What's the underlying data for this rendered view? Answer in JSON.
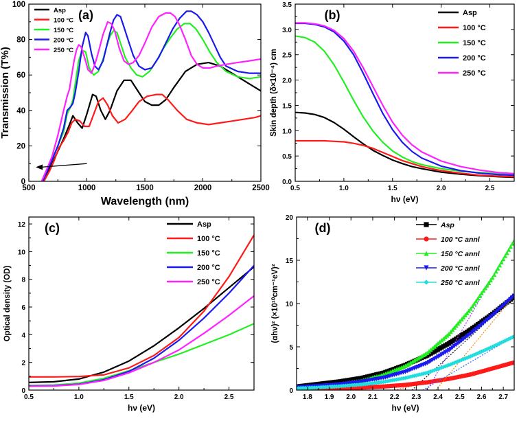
{
  "chart_data": [
    {
      "type": "line",
      "panel_label": "(a)",
      "xlabel": "Wavelength (nm)",
      "ylabel": "Transmission (T%)",
      "xlim": [
        500,
        2500
      ],
      "ylim": [
        0,
        100
      ],
      "xticks": [
        "500",
        "1000",
        "1500",
        "2000",
        "2500"
      ],
      "yticks": [
        "0",
        "20",
        "40",
        "60",
        "80",
        "100"
      ],
      "legend_position": "top-left",
      "series": [
        {
          "name": "Asp",
          "color": "#000000",
          "x": [
            610,
            650,
            700,
            750,
            800,
            850,
            880,
            920,
            960,
            1000,
            1050,
            1080,
            1120,
            1160,
            1200,
            1260,
            1320,
            1380,
            1450,
            1500,
            1560,
            1620,
            1680,
            1750,
            1850,
            1950,
            2050,
            2150,
            2250,
            2350,
            2450,
            2500
          ],
          "y": [
            0,
            4,
            10,
            17,
            24,
            32,
            37,
            33,
            30,
            38,
            49,
            48,
            40,
            35,
            40,
            51,
            57,
            57,
            50,
            45,
            43,
            43,
            46,
            53,
            62,
            66,
            67,
            65,
            61,
            57,
            53,
            51
          ]
        },
        {
          "name": "100 °C",
          "color": "#ff1a1a",
          "x": [
            630,
            680,
            720,
            760,
            800,
            840,
            870,
            900,
            940,
            980,
            1020,
            1060,
            1100,
            1140,
            1180,
            1220,
            1270,
            1330,
            1380,
            1450,
            1520,
            1600,
            1650,
            1700,
            1780,
            1860,
            1950,
            2050,
            2150,
            2250,
            2350,
            2450,
            2500
          ],
          "y": [
            0,
            6,
            12,
            19,
            23,
            28,
            33,
            35,
            34,
            31,
            31,
            38,
            45,
            47,
            43,
            37,
            33,
            35,
            39,
            45,
            48,
            49,
            49,
            46,
            40,
            35,
            33,
            32,
            33,
            34,
            35,
            36,
            37
          ]
        },
        {
          "name": "150 °C",
          "color": "#22ee22",
          "x": [
            610,
            650,
            700,
            750,
            800,
            830,
            860,
            880,
            900,
            930,
            960,
            990,
            1020,
            1060,
            1100,
            1140,
            1170,
            1200,
            1230,
            1260,
            1290,
            1330,
            1380,
            1430,
            1480,
            1540,
            1600,
            1660,
            1720,
            1780,
            1840,
            1890,
            1940,
            2000,
            2060,
            2120,
            2200,
            2300,
            2400,
            2500
          ],
          "y": [
            0,
            5,
            12,
            20,
            28,
            38,
            42,
            46,
            55,
            68,
            74,
            73,
            64,
            60,
            62,
            69,
            76,
            82,
            85,
            84,
            78,
            70,
            64,
            60,
            59,
            62,
            68,
            75,
            81,
            86,
            89,
            89,
            86,
            80,
            73,
            67,
            62,
            59,
            58,
            59
          ]
        },
        {
          "name": "200 °C",
          "color": "#1a1aee",
          "x": [
            620,
            660,
            700,
            750,
            800,
            830,
            860,
            880,
            900,
            930,
            960,
            990,
            1010,
            1040,
            1070,
            1100,
            1140,
            1170,
            1200,
            1230,
            1260,
            1290,
            1320,
            1360,
            1400,
            1450,
            1500,
            1560,
            1620,
            1680,
            1740,
            1800,
            1860,
            1900,
            1950,
            2000,
            2050,
            2100,
            2150,
            2200,
            2300,
            2400,
            2500
          ],
          "y": [
            0,
            6,
            12,
            20,
            30,
            40,
            42,
            44,
            50,
            62,
            76,
            84,
            82,
            72,
            65,
            63,
            68,
            76,
            84,
            91,
            94,
            93,
            87,
            79,
            71,
            65,
            63,
            64,
            70,
            78,
            86,
            92,
            96,
            96,
            94,
            90,
            84,
            77,
            70,
            65,
            62,
            61,
            61
          ]
        },
        {
          "name": "250 °C",
          "color": "#ff22ff",
          "x": [
            610,
            650,
            700,
            750,
            800,
            830,
            850,
            870,
            890,
            910,
            930,
            950,
            980,
            1010,
            1040,
            1070,
            1100,
            1140,
            1180,
            1210,
            1240,
            1280,
            1320,
            1360,
            1400,
            1450,
            1500,
            1560,
            1620,
            1680,
            1720,
            1760,
            1800,
            1850,
            1900,
            1950,
            2000,
            2060,
            2120,
            2200,
            2300,
            2400,
            2500
          ],
          "y": [
            0,
            6,
            14,
            26,
            40,
            48,
            52,
            60,
            68,
            74,
            77,
            76,
            70,
            63,
            61,
            66,
            73,
            83,
            90,
            89,
            85,
            75,
            68,
            66,
            67,
            71,
            78,
            87,
            93,
            95,
            95,
            93,
            88,
            80,
            71,
            66,
            64,
            64,
            65,
            66,
            67,
            68,
            69
          ]
        }
      ],
      "arrow": {
        "from": [
          1000,
          10
        ],
        "to": [
          560,
          8
        ]
      }
    },
    {
      "type": "line",
      "panel_label": "(b)",
      "xlabel": "hν (eV)",
      "ylabel": "Skin depth (δ×10⁻⁴) cm",
      "xlim": [
        0.5,
        2.75
      ],
      "ylim": [
        0,
        3.5
      ],
      "xticks": [
        "0.5",
        "1.0",
        "1.5",
        "2.0",
        "2.5"
      ],
      "yticks": [
        "0.0",
        "0.5",
        "1.0",
        "1.5",
        "2.0",
        "2.5",
        "3.0",
        "3.5"
      ],
      "legend_position": "top-right",
      "series": [
        {
          "name": "Asp",
          "color": "#000000",
          "x": [
            0.5,
            0.6,
            0.7,
            0.8,
            0.9,
            1.0,
            1.1,
            1.2,
            1.3,
            1.4,
            1.5,
            1.6,
            1.7,
            1.8,
            2.0,
            2.2,
            2.4,
            2.6,
            2.75
          ],
          "y": [
            1.36,
            1.35,
            1.32,
            1.26,
            1.16,
            1.03,
            0.88,
            0.74,
            0.61,
            0.51,
            0.42,
            0.35,
            0.29,
            0.25,
            0.18,
            0.14,
            0.11,
            0.09,
            0.08
          ]
        },
        {
          "name": "100 °C",
          "color": "#ff1a1a",
          "x": [
            0.5,
            0.6,
            0.7,
            0.8,
            0.9,
            1.0,
            1.1,
            1.2,
            1.3,
            1.4,
            1.5,
            1.6,
            1.7,
            1.8,
            2.0,
            2.2,
            2.4,
            2.6,
            2.75
          ],
          "y": [
            0.8,
            0.8,
            0.8,
            0.8,
            0.79,
            0.78,
            0.75,
            0.71,
            0.65,
            0.57,
            0.49,
            0.41,
            0.35,
            0.29,
            0.21,
            0.16,
            0.12,
            0.1,
            0.09
          ]
        },
        {
          "name": "150 °C",
          "color": "#22ee22",
          "x": [
            0.5,
            0.6,
            0.7,
            0.8,
            0.9,
            1.0,
            1.1,
            1.2,
            1.3,
            1.4,
            1.5,
            1.6,
            1.7,
            1.8,
            2.0,
            2.2,
            2.4,
            2.6,
            2.75
          ],
          "y": [
            2.87,
            2.84,
            2.75,
            2.57,
            2.3,
            1.96,
            1.6,
            1.27,
            0.99,
            0.77,
            0.6,
            0.48,
            0.39,
            0.33,
            0.25,
            0.2,
            0.17,
            0.15,
            0.14
          ]
        },
        {
          "name": "200 °C",
          "color": "#1a1aee",
          "x": [
            0.5,
            0.6,
            0.7,
            0.8,
            0.9,
            1.0,
            1.1,
            1.2,
            1.3,
            1.4,
            1.5,
            1.6,
            1.7,
            1.8,
            2.0,
            2.2,
            2.4,
            2.6,
            2.75
          ],
          "y": [
            3.12,
            3.12,
            3.1,
            3.05,
            2.95,
            2.77,
            2.5,
            2.13,
            1.73,
            1.34,
            1.02,
            0.77,
            0.59,
            0.46,
            0.3,
            0.21,
            0.16,
            0.13,
            0.12
          ]
        },
        {
          "name": "250 °C",
          "color": "#ff22ff",
          "x": [
            0.5,
            0.6,
            0.7,
            0.8,
            0.9,
            1.0,
            1.1,
            1.2,
            1.3,
            1.4,
            1.5,
            1.6,
            1.7,
            1.8,
            2.0,
            2.2,
            2.4,
            2.6,
            2.75
          ],
          "y": [
            3.13,
            3.13,
            3.11,
            3.07,
            2.98,
            2.82,
            2.57,
            2.24,
            1.87,
            1.5,
            1.17,
            0.91,
            0.72,
            0.58,
            0.4,
            0.29,
            0.22,
            0.17,
            0.15
          ]
        }
      ]
    },
    {
      "type": "line",
      "panel_label": "(c)",
      "xlabel": "hν (eV)",
      "ylabel": "Optical density (OD)",
      "xlim": [
        0.5,
        2.75
      ],
      "ylim": [
        0,
        12.5
      ],
      "xticks": [
        "0.5",
        "1.0",
        "1.5",
        "2.0",
        "2.5"
      ],
      "yticks": [
        "0",
        "2",
        "4",
        "6",
        "8",
        "10",
        "12"
      ],
      "legend_position": "top-right",
      "series": [
        {
          "name": "Asp",
          "color": "#000000",
          "x": [
            0.5,
            0.75,
            1.0,
            1.25,
            1.5,
            1.75,
            2.0,
            2.25,
            2.5,
            2.75
          ],
          "y": [
            0.55,
            0.6,
            0.8,
            1.3,
            2.1,
            3.2,
            4.5,
            5.9,
            7.4,
            8.9
          ]
        },
        {
          "name": "100 °C",
          "color": "#ff1a1a",
          "x": [
            0.5,
            0.75,
            1.0,
            1.25,
            1.5,
            1.75,
            2.0,
            2.25,
            2.5,
            2.75
          ],
          "y": [
            0.95,
            0.95,
            0.98,
            1.1,
            1.6,
            2.5,
            3.8,
            5.7,
            8.2,
            11.2
          ]
        },
        {
          "name": "150 °C",
          "color": "#22ee22",
          "x": [
            0.5,
            0.75,
            1.0,
            1.25,
            1.5,
            1.75,
            2.0,
            2.25,
            2.5,
            2.75
          ],
          "y": [
            0.33,
            0.36,
            0.5,
            0.85,
            1.4,
            2.0,
            2.6,
            3.3,
            4.0,
            4.8
          ]
        },
        {
          "name": "200 °C",
          "color": "#1a1aee",
          "x": [
            0.5,
            0.75,
            1.0,
            1.25,
            1.5,
            1.75,
            2.0,
            2.25,
            2.5,
            2.75
          ],
          "y": [
            0.3,
            0.32,
            0.42,
            0.75,
            1.35,
            2.3,
            3.6,
            5.2,
            7.0,
            9.0
          ]
        },
        {
          "name": "250 °C",
          "color": "#ff22ff",
          "x": [
            0.5,
            0.75,
            1.0,
            1.25,
            1.5,
            1.75,
            2.0,
            2.25,
            2.5,
            2.75
          ],
          "y": [
            0.28,
            0.3,
            0.4,
            0.7,
            1.25,
            2.0,
            2.9,
            4.1,
            5.4,
            6.8
          ]
        }
      ]
    },
    {
      "type": "scatter",
      "panel_label": "(d)",
      "xlabel": "hν (eV)",
      "ylabel": "(αhν)² (×10¹⁰cm⁻¹eV)²",
      "xlim": [
        1.75,
        2.75
      ],
      "ylim": [
        0,
        20
      ],
      "xticks": [
        "1.8",
        "1.9",
        "2.0",
        "2.1",
        "2.2",
        "2.3",
        "2.4",
        "2.5",
        "2.6",
        "2.7"
      ],
      "yticks": [
        "0",
        "5",
        "10",
        "15",
        "20"
      ],
      "legend_position": "top-left",
      "series": [
        {
          "name": "Asp",
          "color": "#000000",
          "marker": "square",
          "x": [
            1.75,
            1.85,
            1.95,
            2.05,
            2.15,
            2.25,
            2.35,
            2.45,
            2.55,
            2.65,
            2.75
          ],
          "y": [
            0.4,
            0.7,
            1.0,
            1.4,
            2.0,
            2.9,
            4.0,
            5.4,
            7.0,
            8.8,
            10.8
          ],
          "fit": {
            "x0": 2.28,
            "x1": 2.75,
            "y1": 10.8
          }
        },
        {
          "name": "100 °C annl",
          "color": "#ff1a1a",
          "marker": "circle",
          "x": [
            1.75,
            1.85,
            1.95,
            2.05,
            2.15,
            2.25,
            2.35,
            2.45,
            2.55,
            2.65,
            2.75
          ],
          "y": [
            0.1,
            0.15,
            0.22,
            0.3,
            0.42,
            0.6,
            0.9,
            1.3,
            1.8,
            2.5,
            3.2
          ],
          "fit": {
            "x0": 2.2,
            "x1": 2.75,
            "y1": 3.2
          }
        },
        {
          "name": "150 °C annl",
          "color": "#22ee22",
          "marker": "triangle-up",
          "x": [
            1.75,
            1.85,
            1.95,
            2.05,
            2.15,
            2.25,
            2.35,
            2.45,
            2.55,
            2.65,
            2.75
          ],
          "y": [
            0.2,
            0.4,
            0.7,
            1.1,
            1.8,
            2.8,
            4.3,
            6.5,
            9.4,
            13.0,
            17.3
          ],
          "fit": {
            "x0": 2.35,
            "x1": 2.75,
            "y1": 17.3
          }
        },
        {
          "name": "200 °C annl",
          "color": "#1a1aee",
          "marker": "triangle-down",
          "x": [
            1.75,
            1.85,
            1.95,
            2.05,
            2.15,
            2.25,
            2.35,
            2.45,
            2.55,
            2.65,
            2.75
          ],
          "y": [
            0.3,
            0.45,
            0.65,
            0.95,
            1.4,
            2.1,
            3.1,
            4.6,
            6.5,
            8.6,
            10.9
          ],
          "fit": {
            "x0": 2.39,
            "x1": 2.75,
            "y1": 10.9
          }
        },
        {
          "name": "250 °C annl",
          "color": "#22dddd",
          "marker": "diamond",
          "x": [
            1.75,
            1.85,
            1.95,
            2.05,
            2.15,
            2.25,
            2.35,
            2.45,
            2.55,
            2.65,
            2.75
          ],
          "y": [
            0.2,
            0.3,
            0.45,
            0.65,
            0.95,
            1.4,
            2.0,
            2.9,
            3.9,
            5.0,
            6.2
          ],
          "fit": {
            "x0": 2.33,
            "x1": 2.75,
            "y1": 6.2
          }
        }
      ]
    }
  ]
}
